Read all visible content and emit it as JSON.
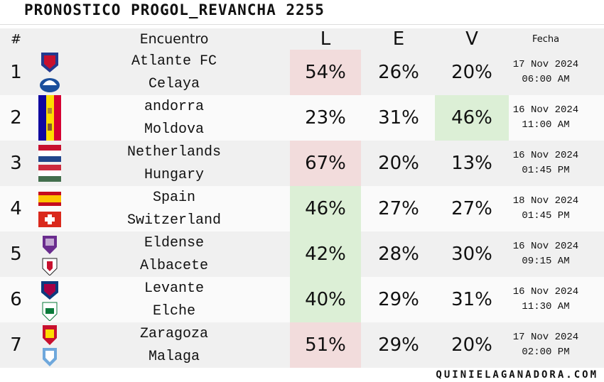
{
  "header": {
    "title": "PRONOSTICO PROGOL_REVANCHA 2255"
  },
  "table": {
    "columns": [
      "#",
      "Encuentro",
      "L",
      "E",
      "V",
      "Fecha"
    ],
    "rows": [
      {
        "number": "1",
        "home": "Atlante FC",
        "away": "Celaya",
        "L": "54%",
        "E": "26%",
        "V": "20%",
        "date": "17 Nov 2024",
        "time": "06:00 AM",
        "highlight": "L",
        "highlight_color": "#f2dcdc"
      },
      {
        "number": "2",
        "home": "andorra",
        "away": "Moldova",
        "L": "23%",
        "E": "31%",
        "V": "46%",
        "date": "16 Nov 2024",
        "time": "11:00 AM",
        "highlight": "V",
        "highlight_color": "#dcefd6"
      },
      {
        "number": "3",
        "home": "Netherlands",
        "away": "Hungary",
        "L": "67%",
        "E": "20%",
        "V": "13%",
        "date": "16 Nov 2024",
        "time": "01:45 PM",
        "highlight": "L",
        "highlight_color": "#f2dcdc"
      },
      {
        "number": "4",
        "home": "Spain",
        "away": "Switzerland",
        "L": "46%",
        "E": "27%",
        "V": "27%",
        "date": "18 Nov 2024",
        "time": "01:45 PM",
        "highlight": "L",
        "highlight_color": "#dcefd6"
      },
      {
        "number": "5",
        "home": "Eldense",
        "away": "Albacete",
        "L": "42%",
        "E": "28%",
        "V": "30%",
        "date": "16 Nov 2024",
        "time": "09:15 AM",
        "highlight": "L",
        "highlight_color": "#dcefd6"
      },
      {
        "number": "6",
        "home": "Levante",
        "away": "Elche",
        "L": "40%",
        "E": "29%",
        "V": "31%",
        "date": "16 Nov 2024",
        "time": "11:30 AM",
        "highlight": "L",
        "highlight_color": "#dcefd6"
      },
      {
        "number": "7",
        "home": "Zaragoza",
        "away": "Malaga",
        "L": "51%",
        "E": "29%",
        "V": "20%",
        "date": "17 Nov 2024",
        "time": "02:00 PM",
        "highlight": "L",
        "highlight_color": "#f2dcdc"
      }
    ]
  },
  "footer": {
    "site": "QUINIELAGANADORA.COM"
  }
}
